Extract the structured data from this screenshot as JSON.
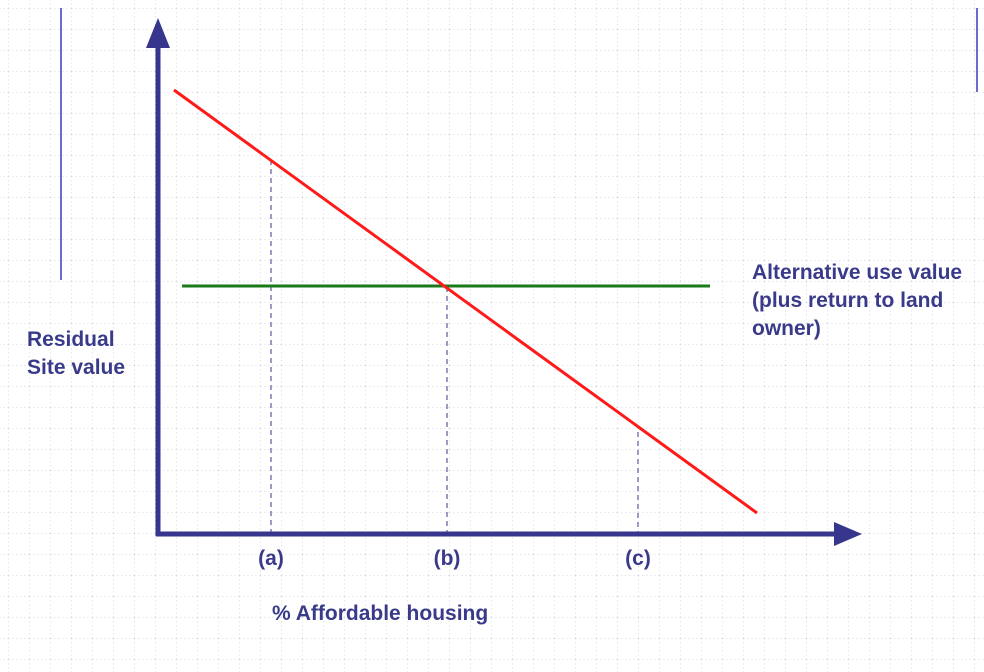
{
  "diagram": {
    "y_axis_label_line1": "Residual",
    "y_axis_label_line2": "Site value",
    "x_axis_label": "% Affordable housing",
    "x_ticks": [
      "(a)",
      "(b)",
      "(c)"
    ],
    "horizontal_line_label": {
      "line1": "Alternative use value",
      "line2": "(plus return to land",
      "line3": "owner)"
    }
  },
  "colors": {
    "axis": "#36368c",
    "label_text": "#3a3a8a",
    "residual_value_line": "#ff1a1a",
    "alternative_use_line": "#1a7a1a",
    "reference_lines": "#5a5a9a",
    "grid": "#c9d0dc",
    "side_rules": "#3b3bbb"
  }
}
